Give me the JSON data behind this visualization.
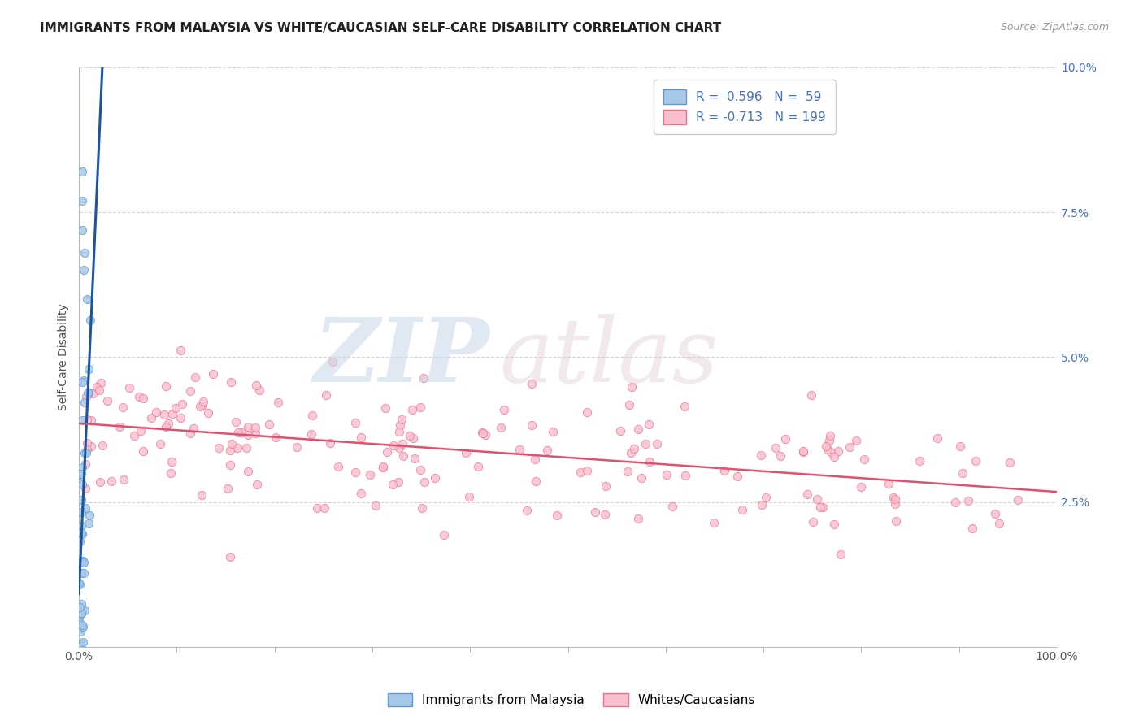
{
  "title": "IMMIGRANTS FROM MALAYSIA VS WHITE/CAUCASIAN SELF-CARE DISABILITY CORRELATION CHART",
  "source": "Source: ZipAtlas.com",
  "ylabel": "Self-Care Disability",
  "xlim": [
    0,
    1.0
  ],
  "ylim": [
    0,
    0.1
  ],
  "x_tick_positions": [
    0.0,
    1.0
  ],
  "x_tick_labels": [
    "0.0%",
    "100.0%"
  ],
  "y_tick_positions": [
    0.0,
    0.025,
    0.05,
    0.075,
    0.1
  ],
  "y_tick_labels_right": [
    "",
    "2.5%",
    "5.0%",
    "7.5%",
    "10.0%"
  ],
  "blue_R": 0.596,
  "blue_N": 59,
  "pink_R": -0.713,
  "pink_N": 199,
  "blue_dot_color": "#a8c8e8",
  "blue_dot_edge": "#5b9bd5",
  "pink_dot_color": "#f9bfcc",
  "pink_dot_edge": "#f07090",
  "trend_blue": "#1a56a0",
  "trend_pink": "#e05070",
  "background": "#ffffff",
  "grid_color": "#cccccc",
  "right_tick_color": "#4472c4",
  "title_fontsize": 11,
  "axis_label_fontsize": 10,
  "tick_fontsize": 10,
  "legend_fontsize": 11
}
